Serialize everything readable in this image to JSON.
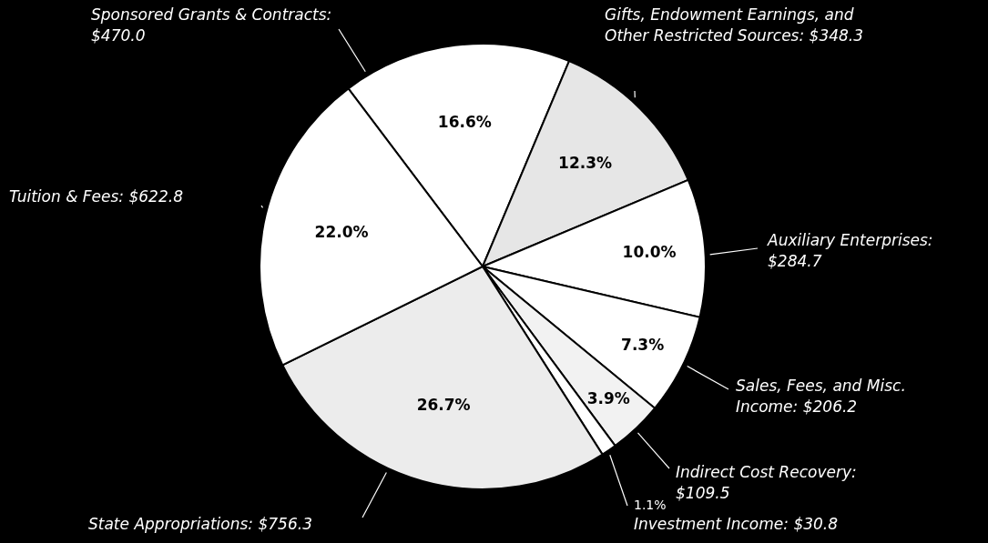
{
  "chart_data": {
    "type": "pie",
    "categories": [
      "Sponsored Grants & Contracts: $470.0",
      "Gifts, Endowment Earnings, and Other Restricted Sources: $348.3",
      "Auxiliary Enterprises: $284.7",
      "Sales, Fees, and Misc. Income: $206.2",
      "Indirect Cost Recovery: $109.5",
      "Investment Income: $30.8",
      "State Appropriations: $756.3",
      "Tuition & Fees: $622.8"
    ],
    "values": [
      16.6,
      12.3,
      10.0,
      7.3,
      3.9,
      1.1,
      26.7,
      22.0
    ],
    "value_labels": [
      "16.6%",
      "12.3%",
      "10.0%",
      "7.3%",
      "3.9%",
      "1.1%",
      "26.7%",
      "22.0%"
    ],
    "colors": [
      "#ffffff",
      "#e6e6e6",
      "#ffffff",
      "#ffffff",
      "#f2f2f2",
      "#ffffff",
      "#ececec",
      "#ffffff"
    ]
  }
}
